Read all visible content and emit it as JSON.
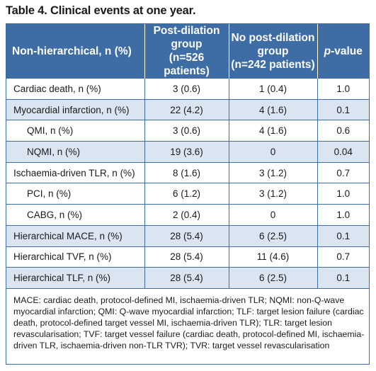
{
  "title": "Table 4. Clinical events at one year.",
  "header": {
    "col1": "Non-hierarchical, n (%)",
    "col2_line1": "Post-dilation",
    "col2_line2": "group",
    "col2_line3": "(n=526 patients)",
    "col3_line1": "No post-dilation",
    "col3_line2": "group",
    "col3_line3": "(n=242 patients)",
    "col4_italic": "p",
    "col4_rest": "-value"
  },
  "rows": [
    {
      "label": "Cardiac death, n (%)",
      "post": "3 (0.6)",
      "nopost": "1 (0.4)",
      "p": "1.0"
    },
    {
      "label": "Myocardial infarction, n (%)",
      "post": "22 (4.2)",
      "nopost": "4 (1.6)",
      "p": "0.1"
    },
    {
      "label": "QMI, n (%)",
      "post": "3 (0.6)",
      "nopost": "4 (1.6)",
      "p": "0.6"
    },
    {
      "label": "NQMI, n (%)",
      "post": "19 (3.6)",
      "nopost": "0",
      "p": "0.04"
    },
    {
      "label": "Ischaemia-driven TLR, n (%)",
      "post": "8 (1.6)",
      "nopost": "3 (1.2)",
      "p": "0.7"
    },
    {
      "label": "PCI, n (%)",
      "post": "6 (1.2)",
      "nopost": "3 (1.2)",
      "p": "1.0"
    },
    {
      "label": "CABG, n (%)",
      "post": "2 (0.4)",
      "nopost": "0",
      "p": "1.0"
    },
    {
      "label": "Hierarchical MACE, n (%)",
      "post": "28 (5.4)",
      "nopost": "6 (2.5)",
      "p": "0.1"
    },
    {
      "label": "Hierarchical TVF, n (%)",
      "post": "28 (5.4)",
      "nopost": "11 (4.6)",
      "p": "0.7"
    },
    {
      "label": "Hierarchical TLF, n (%)",
      "post": "28 (5.4)",
      "nopost": "6 (2.5)",
      "p": "0.1"
    }
  ],
  "footnote": "MACE: cardiac death, protocol-defined MI, ischaemia-driven TLR; NQMI: non-Q-wave myocardial infarction; QMI: Q-wave myocardial infarction; TLF: target lesion failure (cardiac death, protocol-defined target vessel MI, ischaemia-driven TLR); TLR: target lesion revascularisation; TVF: target vessel failure (cardiac death, protocol-defined MI, ischaemia-driven TLR, ischaemia-driven non-TLR TVR); TVR: target vessel revascularisation",
  "colors": {
    "header_bg": "#3e6da6",
    "shade_bg": "#dbe5f1",
    "border": "#3e6da6"
  }
}
